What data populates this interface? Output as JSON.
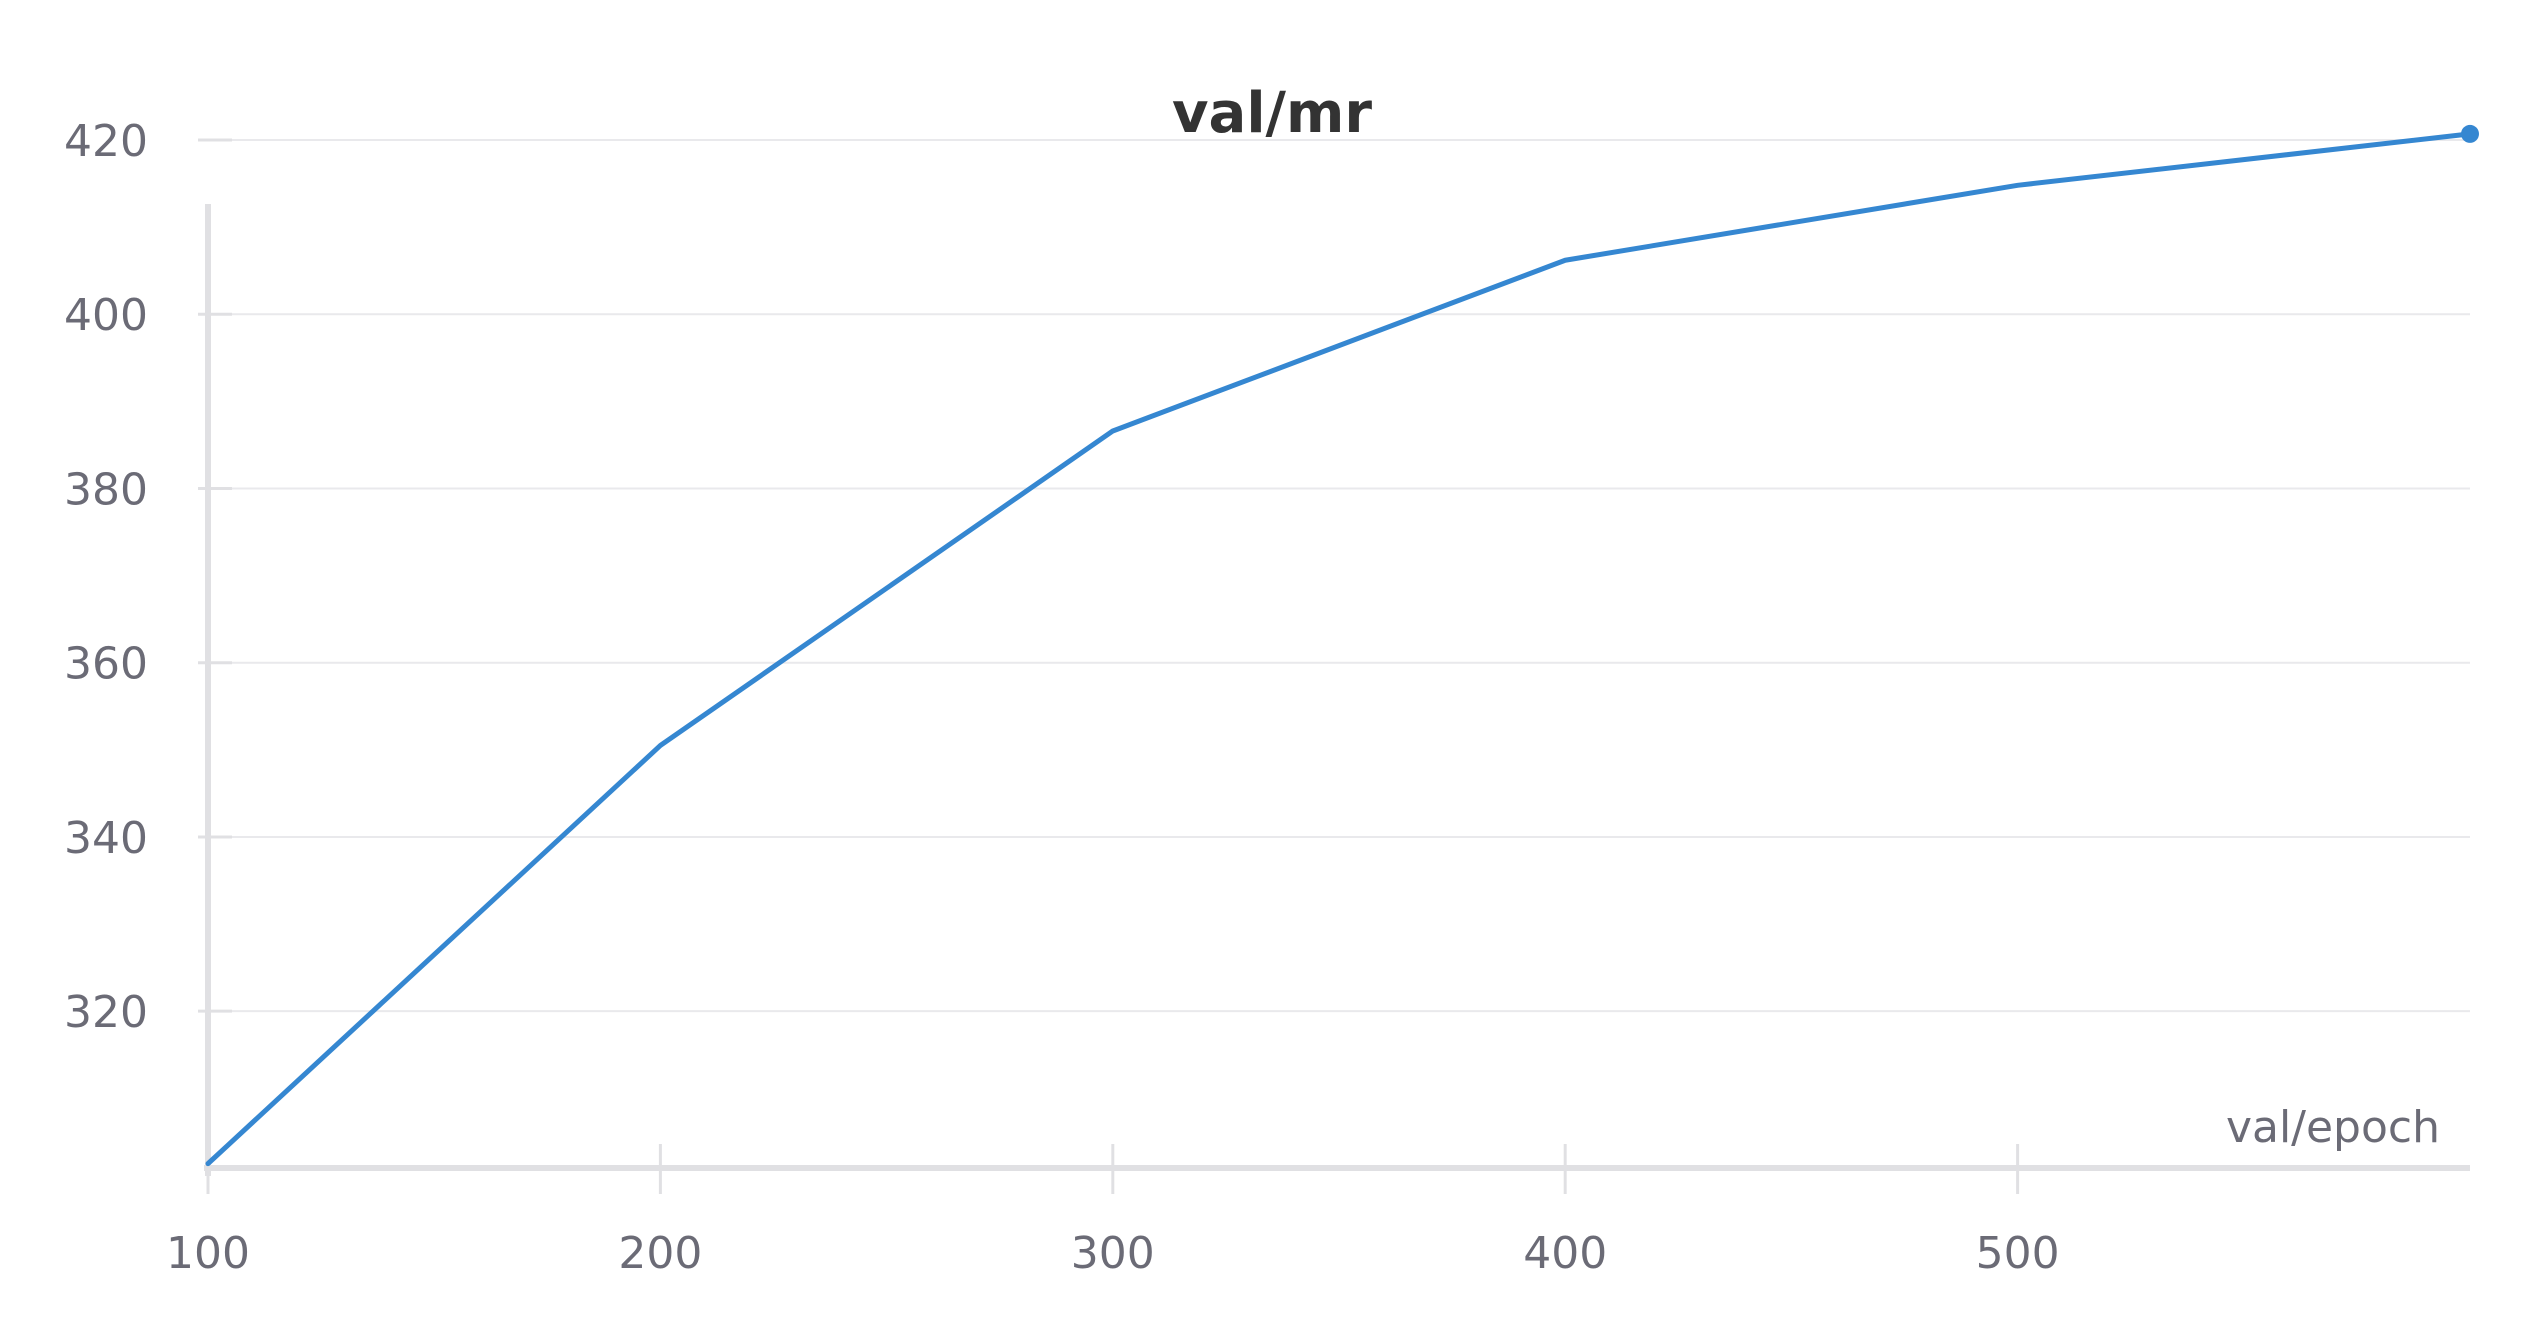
{
  "chart_data": {
    "type": "line",
    "title": "val/mr",
    "xlabel": "val/epoch",
    "ylabel": "",
    "xlim": [
      100,
      600
    ],
    "ylim": [
      302,
      420
    ],
    "xticks": [
      "100",
      "200",
      "300",
      "400",
      "500"
    ],
    "yticks": [
      "320",
      "340",
      "360",
      "380",
      "400",
      "420"
    ],
    "grid": true,
    "legend": "none",
    "colors": {
      "line": "#3587d1",
      "grid": "#e9e9ec",
      "axis": "#e0e0e3",
      "text": "#6b6b76",
      "title": "#333333"
    },
    "series": [
      {
        "x": [
          100,
          200,
          300,
          400,
          500,
          600
        ],
        "y": [
          302.5,
          350.5,
          386.6,
          406.2,
          414.8,
          420.7
        ]
      }
    ],
    "annotations": [
      {
        "type": "end-marker",
        "x": 600,
        "y": 420.7
      }
    ]
  }
}
